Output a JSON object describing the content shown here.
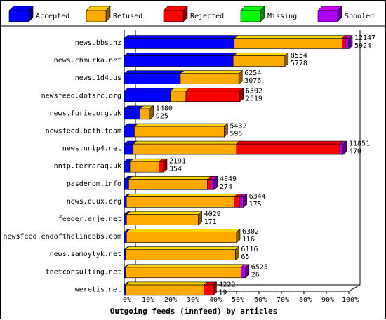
{
  "chart_data": {
    "type": "bar",
    "stacked": true,
    "orientation": "horizontal",
    "title": "Outgoing feeds (innfeed) by articles",
    "xlim": [
      0,
      100
    ],
    "xticks": [
      "0%",
      "10%",
      "20%",
      "30%",
      "40%",
      "50%",
      "60%",
      "70%",
      "80%",
      "90%",
      "100%"
    ],
    "legend_position": "top",
    "series": [
      {
        "name": "Accepted",
        "color": "#0000ff"
      },
      {
        "name": "Refused",
        "color": "#ffaa00"
      },
      {
        "name": "Rejected",
        "color": "#ff0000"
      },
      {
        "name": "Missing",
        "color": "#00ff00"
      },
      {
        "name": "Spooled",
        "color": "#aa00ff"
      }
    ],
    "rows": [
      {
        "label": "news.bbs.nz",
        "total": "12147",
        "spooled": "5924",
        "values": [
          49,
          48,
          1.5,
          0,
          1.5
        ]
      },
      {
        "label": "news.chmurka.net",
        "total": "8554",
        "spooled": "5778",
        "values": [
          48.5,
          23,
          0,
          0,
          0
        ]
      },
      {
        "label": "news.1d4.us",
        "total": "6254",
        "spooled": "3076",
        "values": [
          25,
          26,
          0,
          0,
          0
        ]
      },
      {
        "label": "newsfeed.dotsrc.org",
        "total": "6302",
        "spooled": "2519",
        "values": [
          20.5,
          7,
          24,
          0,
          0
        ]
      },
      {
        "label": "news.furie.org.uk",
        "total": "1480",
        "spooled": "925",
        "values": [
          7,
          4.5,
          0,
          0,
          0
        ]
      },
      {
        "label": "newsfeed.bofh.team",
        "total": "5432",
        "spooled": "595",
        "values": [
          4.5,
          40,
          0,
          0,
          0
        ]
      },
      {
        "label": "news.nntp4.net",
        "total": "11851",
        "spooled": "470",
        "values": [
          4,
          46,
          46,
          0,
          1.5
        ]
      },
      {
        "label": "nntp.terraraq.uk",
        "total": "2191",
        "spooled": "354",
        "values": [
          2.5,
          13,
          2,
          0,
          0
        ]
      },
      {
        "label": "pasdenom.info",
        "total": "4849",
        "spooled": "274",
        "values": [
          2,
          35,
          1.5,
          0,
          1.5
        ]
      },
      {
        "label": "news.quux.org",
        "total": "6344",
        "spooled": "175",
        "values": [
          1,
          48,
          2.5,
          0,
          1.5
        ]
      },
      {
        "label": "feeder.erje.net",
        "total": "4029",
        "spooled": "171",
        "values": [
          1,
          32,
          0,
          0,
          0
        ]
      },
      {
        "label": "newsfeed.endofthelinebbs.com",
        "total": "6302",
        "spooled": "116",
        "values": [
          1,
          49,
          0,
          0,
          0
        ]
      },
      {
        "label": "news.samoylyk.net",
        "total": "6116",
        "spooled": "65",
        "values": [
          0.5,
          49,
          0,
          0,
          0
        ]
      },
      {
        "label": "tnetconsulting.net",
        "total": "6525",
        "spooled": "26",
        "values": [
          0.5,
          51.5,
          0,
          0,
          2
        ]
      },
      {
        "label": "weretis.net",
        "total": "4222",
        "spooled": "19",
        "values": [
          0.5,
          35,
          4,
          0,
          0
        ]
      }
    ]
  }
}
